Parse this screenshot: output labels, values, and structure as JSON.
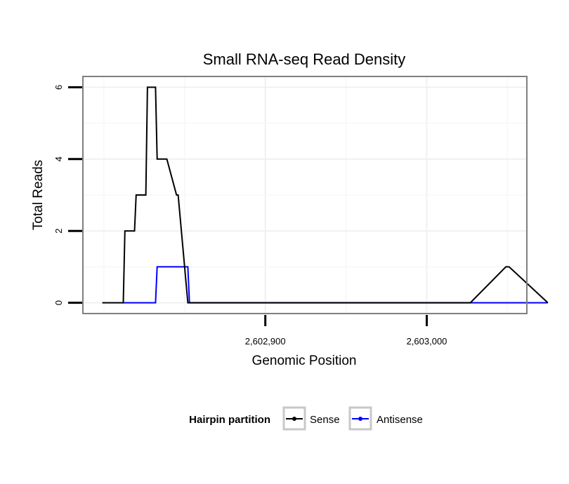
{
  "chart_data": {
    "type": "line",
    "title": "Small RNA-seq Read Density",
    "xlabel": "Genomic Position",
    "ylabel": "Total Reads",
    "xlim": [
      2602787,
      2603062
    ],
    "ylim": [
      -0.3,
      6.3
    ],
    "x_ticks": [
      {
        "value": 2602900,
        "label": "2,602,900"
      },
      {
        "value": 2603000,
        "label": "2,603,000"
      }
    ],
    "y_ticks": [
      {
        "value": 0,
        "label": "0"
      },
      {
        "value": 2,
        "label": "2"
      },
      {
        "value": 4,
        "label": "4"
      },
      {
        "value": 6,
        "label": "6"
      }
    ],
    "grid": true,
    "legend": {
      "title": "Hairpin partition",
      "position": "bottom",
      "entries": [
        "Sense",
        "Antisense"
      ]
    },
    "series": [
      {
        "name": "Sense",
        "color": "#000000",
        "x": [
          2602799,
          2602812,
          2602813,
          2602819,
          2602820,
          2602826,
          2602827,
          2602831,
          2602832,
          2602833,
          2602838,
          2602839,
          2602845,
          2602846,
          2602852,
          2602853,
          2602857,
          2603027,
          2603049,
          2603051,
          2603075
        ],
        "y": [
          0,
          0,
          2,
          2,
          3,
          3,
          6,
          6,
          6,
          4,
          4,
          4,
          3,
          3,
          0,
          0,
          0,
          0,
          1,
          1,
          0
        ]
      },
      {
        "name": "Antisense",
        "color": "#0000ff",
        "x": [
          2602812,
          2602832,
          2602833,
          2602852,
          2602853,
          2603075
        ],
        "y": [
          0,
          0,
          1,
          1,
          0,
          0
        ]
      }
    ]
  }
}
